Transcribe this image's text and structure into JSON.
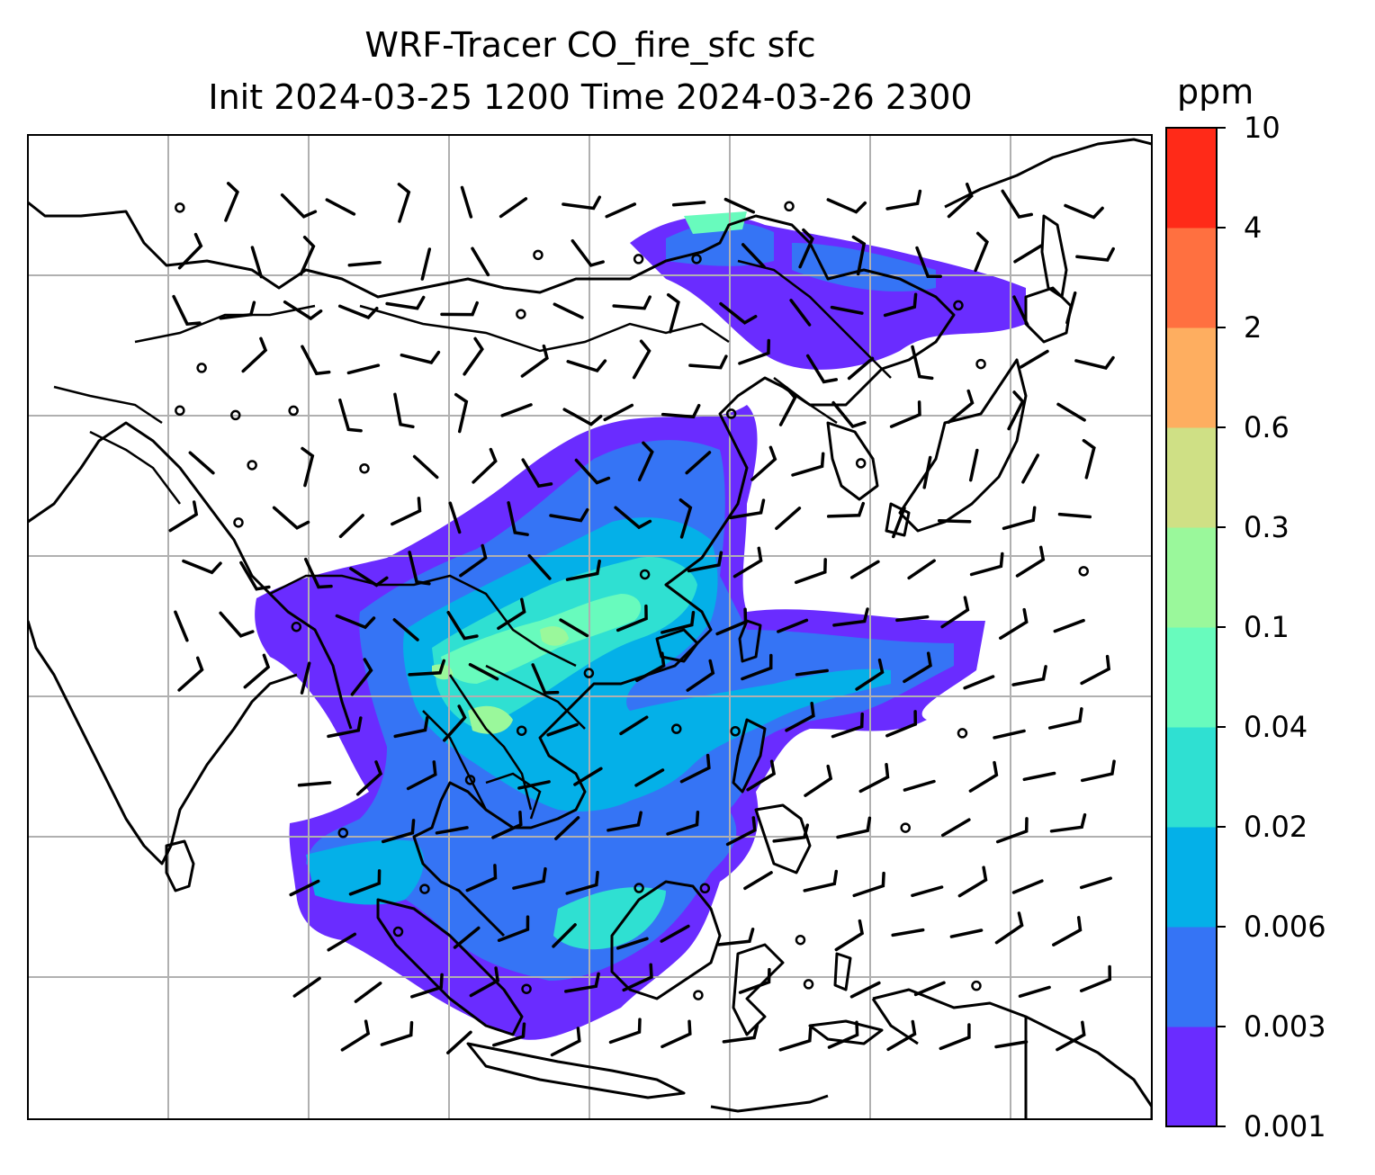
{
  "title": {
    "line1": "WRF-Tracer CO_fire_sfc sfc",
    "line2": "Init 2024-03-25 1200 Time 2024-03-26 2300"
  },
  "colorbar": {
    "unit": "ppm",
    "levels": [
      "0.001",
      "0.003",
      "0.006",
      "0.02",
      "0.04",
      "0.1",
      "0.3",
      "0.6",
      "2",
      "4",
      "10"
    ],
    "colors": [
      "#6a2cff",
      "#3574f5",
      "#04b0e8",
      "#2fe0d2",
      "#68fbbd",
      "#9af89b",
      "#cfe085",
      "#feae60",
      "#ff7040",
      "#ff2a18"
    ]
  },
  "map": {
    "land_fill": "#ffffff",
    "coastline_color": "#000000",
    "gridline_color": "#b0b0b0",
    "overlays": [
      "coastlines",
      "country-borders",
      "wind-barbs",
      "calm-circles",
      "lat-lon-gridlines"
    ]
  }
}
